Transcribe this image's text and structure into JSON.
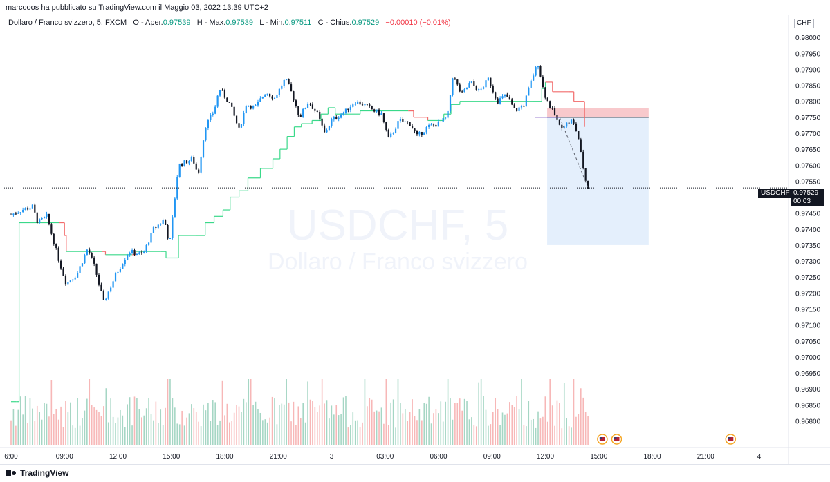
{
  "header": {
    "publisher_line": "marcooos ha pubblicato su TradingView.com il Maggio 03, 2022 13:39 UTC+2"
  },
  "legend": {
    "title": "Dollaro / Franco svizzero, 5, FXCM",
    "o_label": "O - Aper.",
    "o_value": "0.97539",
    "h_label": "H - Max.",
    "h_value": "0.97539",
    "l_label": "L - Min.",
    "l_value": "0.97511",
    "c_label": "C - Chius.",
    "c_value": "0.97529",
    "change": "−0.00010 (−0.01%)"
  },
  "watermark": {
    "symbol": "USDCHF, 5",
    "name": "Dollaro / Franco svizzero"
  },
  "price_axis": {
    "currency": "CHF",
    "current_symbol": "USDCHF",
    "current_price": "0.97529",
    "countdown": "00:03"
  },
  "footer": {
    "brand": "TradingView"
  },
  "colors": {
    "up": "#2196f3",
    "down": "#131722",
    "volume_up": "#a5d6c4",
    "volume_down": "#f7b7b7",
    "trail_green": "#3ad98a",
    "trail_red": "#f26b6b",
    "target_box": "#dbe9fb",
    "stop_box": "#f8c9cc",
    "entry_line": "#7e57c2"
  },
  "chart_data": {
    "type": "candlestick",
    "timeframe": "5",
    "y_ticks": [
      "0.98000",
      "0.97950",
      "0.97900",
      "0.97850",
      "0.97800",
      "0.97750",
      "0.97700",
      "0.97650",
      "0.97600",
      "0.97550",
      "0.97450",
      "0.97400",
      "0.97350",
      "0.97300",
      "0.97250",
      "0.97200",
      "0.97150",
      "0.97100",
      "0.97050",
      "0.97000",
      "0.96950",
      "0.96900",
      "0.96850",
      "0.96800"
    ],
    "ylim": [
      0.9676,
      0.9805
    ],
    "x_ticks": [
      {
        "label": "6:00",
        "t": 0
      },
      {
        "label": "09:00",
        "t": 3
      },
      {
        "label": "12:00",
        "t": 6
      },
      {
        "label": "15:00",
        "t": 9
      },
      {
        "label": "18:00",
        "t": 12
      },
      {
        "label": "21:00",
        "t": 15
      },
      {
        "label": "3",
        "t": 18
      },
      {
        "label": "03:00",
        "t": 21
      },
      {
        "label": "06:00",
        "t": 24
      },
      {
        "label": "09:00",
        "t": 27
      },
      {
        "label": "12:00",
        "t": 30
      },
      {
        "label": "15:00",
        "t": 33
      },
      {
        "label": "18:00",
        "t": 36
      },
      {
        "label": "21:00",
        "t": 39
      },
      {
        "label": "4",
        "t": 42
      }
    ],
    "price_path": [
      [
        0,
        0.97445
      ],
      [
        0.6,
        0.9746
      ],
      [
        1.2,
        0.9747
      ],
      [
        1.5,
        0.9742
      ],
      [
        2.0,
        0.9744
      ],
      [
        2.7,
        0.973
      ],
      [
        3.1,
        0.9723
      ],
      [
        3.7,
        0.9726
      ],
      [
        4.3,
        0.9734
      ],
      [
        4.7,
        0.9728
      ],
      [
        5.2,
        0.9717
      ],
      [
        5.9,
        0.9726
      ],
      [
        6.6,
        0.9733
      ],
      [
        7.4,
        0.9732
      ],
      [
        8.0,
        0.974
      ],
      [
        8.6,
        0.9743
      ],
      [
        8.9,
        0.9735
      ],
      [
        9.4,
        0.976
      ],
      [
        10.2,
        0.9762
      ],
      [
        10.5,
        0.9757
      ],
      [
        10.9,
        0.9772
      ],
      [
        11.4,
        0.9777
      ],
      [
        11.7,
        0.9784
      ],
      [
        12.3,
        0.9779
      ],
      [
        12.8,
        0.9771
      ],
      [
        13.2,
        0.9779
      ],
      [
        13.7,
        0.9778
      ],
      [
        14.3,
        0.9783
      ],
      [
        14.8,
        0.9781
      ],
      [
        15.4,
        0.9787
      ],
      [
        15.8,
        0.9782
      ],
      [
        16.2,
        0.9775
      ],
      [
        16.7,
        0.978
      ],
      [
        17.2,
        0.9776
      ],
      [
        17.6,
        0.977
      ],
      [
        18.0,
        0.9774
      ],
      [
        18.8,
        0.9777
      ],
      [
        19.3,
        0.978
      ],
      [
        19.8,
        0.9779
      ],
      [
        20.4,
        0.9777
      ],
      [
        20.8,
        0.9776
      ],
      [
        21.2,
        0.9768
      ],
      [
        21.8,
        0.9774
      ],
      [
        22.4,
        0.9773
      ],
      [
        22.8,
        0.9769
      ],
      [
        23.4,
        0.9772
      ],
      [
        24.0,
        0.9773
      ],
      [
        24.5,
        0.9775
      ],
      [
        24.8,
        0.9788
      ],
      [
        25.3,
        0.9782
      ],
      [
        25.8,
        0.9786
      ],
      [
        26.3,
        0.9783
      ],
      [
        26.8,
        0.9787
      ],
      [
        27.3,
        0.978
      ],
      [
        27.8,
        0.9782
      ],
      [
        28.3,
        0.9777
      ],
      [
        28.8,
        0.9779
      ],
      [
        29.3,
        0.9788
      ],
      [
        29.6,
        0.9792
      ],
      [
        29.9,
        0.9783
      ],
      [
        30.2,
        0.9779
      ],
      [
        30.5,
        0.9776
      ],
      [
        30.8,
        0.9772
      ],
      [
        31.2,
        0.9773
      ],
      [
        31.5,
        0.9774
      ],
      [
        31.8,
        0.977
      ],
      [
        32.1,
        0.976
      ],
      [
        32.3,
        0.9754
      ],
      [
        32.4,
        0.97529
      ]
    ],
    "trailing_line_path": [
      [
        0.0,
        0.9686
      ],
      [
        0.3,
        0.9686
      ],
      [
        0.45,
        0.9742
      ],
      [
        2.7,
        0.9742
      ],
      [
        3.0,
        0.9738
      ],
      [
        3.1,
        0.9733
      ],
      [
        5.1,
        0.9733
      ],
      [
        5.3,
        0.9732
      ],
      [
        6.8,
        0.9732
      ],
      [
        7.0,
        0.9733
      ],
      [
        8.4,
        0.9733
      ],
      [
        8.7,
        0.9731
      ],
      [
        9.1,
        0.9731
      ],
      [
        9.4,
        0.9738
      ],
      [
        10.4,
        0.9738
      ],
      [
        10.9,
        0.9742
      ],
      [
        11.4,
        0.9744
      ],
      [
        11.9,
        0.9746
      ],
      [
        12.3,
        0.975
      ],
      [
        12.8,
        0.9752
      ],
      [
        13.3,
        0.9756
      ],
      [
        14.0,
        0.9759
      ],
      [
        14.7,
        0.9762
      ],
      [
        15.1,
        0.9765
      ],
      [
        15.5,
        0.9769
      ],
      [
        15.9,
        0.9772
      ],
      [
        16.3,
        0.9773
      ],
      [
        16.9,
        0.9774
      ],
      [
        17.4,
        0.9776
      ],
      [
        17.8,
        0.9778
      ],
      [
        18.0,
        0.9778
      ],
      [
        18.2,
        0.9776
      ],
      [
        18.6,
        0.9776
      ],
      [
        19.6,
        0.9777
      ],
      [
        21.1,
        0.9777
      ],
      [
        22.3,
        0.9777
      ],
      [
        22.6,
        0.9775
      ],
      [
        23.4,
        0.9774
      ],
      [
        24.0,
        0.9774
      ],
      [
        24.3,
        0.9776
      ],
      [
        24.7,
        0.9779
      ],
      [
        25.2,
        0.978
      ],
      [
        29.3,
        0.978
      ],
      [
        29.8,
        0.9784
      ],
      [
        30.0,
        0.9786
      ],
      [
        30.4,
        0.9783
      ],
      [
        31.3,
        0.9783
      ],
      [
        31.6,
        0.978
      ],
      [
        32.0,
        0.978
      ],
      [
        32.2,
        0.9772
      ]
    ],
    "trailing_red_segments": [
      [
        2.8,
        3.1
      ],
      [
        5.1,
        5.4
      ],
      [
        6.7,
        7.0
      ],
      [
        20.6,
        21.2
      ],
      [
        22.3,
        23.4
      ],
      [
        30.1,
        32.2
      ]
    ],
    "position": {
      "entry": 0.9775,
      "stop": 0.9777,
      "target": 0.9735,
      "t_start": 30.1,
      "t_end": 35.8
    },
    "projection": [
      [
        30.8,
        0.9775
      ],
      [
        32.4,
        0.97529
      ]
    ],
    "event_markers": [
      33.2,
      34.0,
      40.4
    ],
    "volume_max_scale": 1.0
  }
}
